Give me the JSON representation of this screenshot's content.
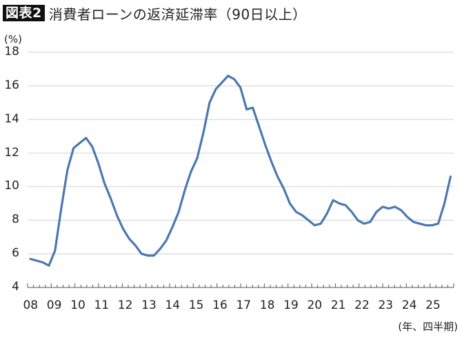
{
  "header": {
    "badge": "図表2",
    "title": "消費者ローンの返済延滞率（90日以上）"
  },
  "axis": {
    "y_unit": "(%)",
    "y_ticks": [
      "18",
      "16",
      "14",
      "12",
      "10",
      "8",
      "6",
      "4"
    ],
    "x_ticks": [
      "08",
      "09",
      "10",
      "11",
      "12",
      "13",
      "14",
      "15",
      "16",
      "17",
      "18",
      "19",
      "20",
      "21",
      "22",
      "23",
      "24",
      "25"
    ],
    "x_unit": "(年、四半期)"
  },
  "colors": {
    "line": "#4a78b0",
    "grid": "#d9d9d9",
    "axis": "#555555"
  },
  "chart_data": {
    "type": "line",
    "title": "消費者ローンの返済延滞率（90日以上）",
    "xlabel": "(年、四半期)",
    "ylabel": "(%)",
    "ylim": [
      4,
      18
    ],
    "grid": true,
    "legend": null,
    "x": [
      "08Q1",
      "08Q2",
      "08Q3",
      "08Q4",
      "09Q1",
      "09Q2",
      "09Q3",
      "09Q4",
      "10Q1",
      "10Q2",
      "10Q3",
      "10Q4",
      "11Q1",
      "11Q2",
      "11Q3",
      "11Q4",
      "12Q1",
      "12Q2",
      "12Q3",
      "12Q4",
      "13Q1",
      "13Q2",
      "13Q3",
      "13Q4",
      "14Q1",
      "14Q2",
      "14Q3",
      "14Q4",
      "15Q1",
      "15Q2",
      "15Q3",
      "15Q4",
      "16Q1",
      "16Q2",
      "16Q3",
      "16Q4",
      "17Q1",
      "17Q2",
      "17Q3",
      "17Q4",
      "18Q1",
      "18Q2",
      "18Q3",
      "18Q4",
      "19Q1",
      "19Q2",
      "19Q3",
      "19Q4",
      "20Q1",
      "20Q2",
      "20Q3",
      "20Q4",
      "21Q1",
      "21Q2",
      "21Q3",
      "21Q4",
      "22Q1",
      "22Q2",
      "22Q3",
      "22Q4",
      "23Q1",
      "23Q2",
      "23Q3",
      "23Q4",
      "24Q1",
      "24Q2",
      "24Q3",
      "24Q4",
      "25Q1"
    ],
    "series": [
      {
        "name": "延滞率",
        "values": [
          5.7,
          5.6,
          5.5,
          5.3,
          6.2,
          8.7,
          11.0,
          12.3,
          12.6,
          12.9,
          12.4,
          11.4,
          10.2,
          9.3,
          8.3,
          7.5,
          6.9,
          6.5,
          6.0,
          5.9,
          5.9,
          6.3,
          6.8,
          7.6,
          8.5,
          9.8,
          10.9,
          11.7,
          13.2,
          15.0,
          15.8,
          16.2,
          16.6,
          16.4,
          15.9,
          14.6,
          14.7,
          13.6,
          12.5,
          11.5,
          10.6,
          9.9,
          9.0,
          8.5,
          8.3,
          8.0,
          7.7,
          7.8,
          8.4,
          9.2,
          9.0,
          8.9,
          8.5,
          8.0,
          7.8,
          7.9,
          8.5,
          8.8,
          8.7,
          8.8,
          8.6,
          8.2,
          7.9,
          7.8,
          7.7,
          7.7,
          7.8,
          9.0,
          10.6
        ]
      }
    ]
  }
}
